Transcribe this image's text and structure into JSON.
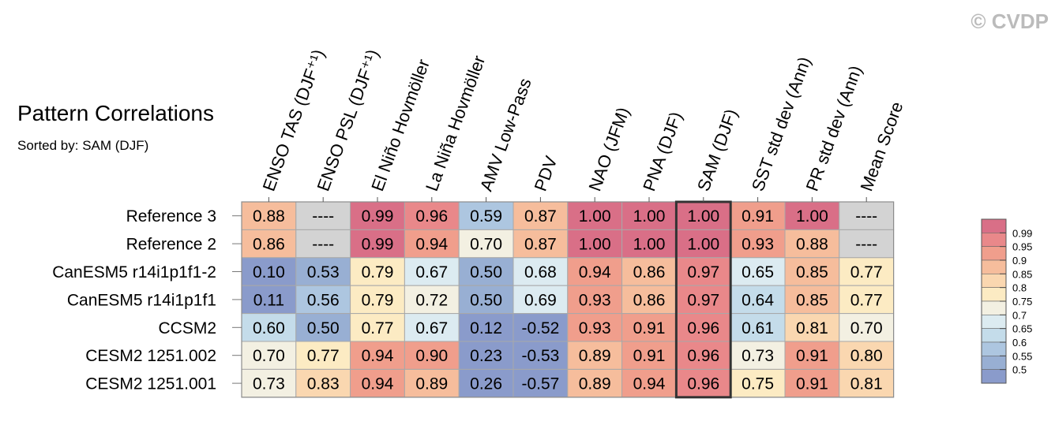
{
  "watermark": "© CVDP",
  "chart_data": {
    "type": "heatmap",
    "title": "Pattern Correlations",
    "subtitle": "Sorted by: SAM (DJF)",
    "columns": [
      "ENSO TAS (DJF⁺¹)",
      "ENSO PSL (DJF⁺¹)",
      "El Niño Hovmöller",
      "La Niña Hovmöller",
      "AMV Low-Pass",
      "PDV",
      "NAO (JFM)",
      "PNA (DJF)",
      "SAM (DJF)",
      "SST std dev (Ann)",
      "PR std dev (Ann)",
      "Mean Score"
    ],
    "highlighted_column": "SAM (DJF)",
    "rows": [
      {
        "name": "Reference 3",
        "values": [
          "0.88",
          "----",
          "0.99",
          "0.96",
          "0.59",
          "0.87",
          "1.00",
          "1.00",
          "1.00",
          "0.91",
          "1.00",
          "----"
        ]
      },
      {
        "name": "Reference 2",
        "values": [
          "0.86",
          "----",
          "0.99",
          "0.94",
          "0.70",
          "0.87",
          "1.00",
          "1.00",
          "1.00",
          "0.93",
          "0.88",
          "----"
        ]
      },
      {
        "name": "CanESM5 r14i1p1f1-2",
        "values": [
          "0.10",
          "0.53",
          "0.79",
          "0.67",
          "0.50",
          "0.68",
          "0.94",
          "0.86",
          "0.97",
          "0.65",
          "0.85",
          "0.77"
        ]
      },
      {
        "name": "CanESM5 r14i1p1f1",
        "values": [
          "0.11",
          "0.56",
          "0.79",
          "0.72",
          "0.50",
          "0.69",
          "0.93",
          "0.86",
          "0.97",
          "0.64",
          "0.85",
          "0.77"
        ]
      },
      {
        "name": "CCSM2",
        "values": [
          "0.60",
          "0.50",
          "0.77",
          "0.67",
          "0.12",
          "-0.52",
          "0.93",
          "0.91",
          "0.96",
          "0.61",
          "0.81",
          "0.70"
        ]
      },
      {
        "name": "CESM2 1251.002",
        "values": [
          "0.70",
          "0.77",
          "0.94",
          "0.90",
          "0.23",
          "-0.53",
          "0.89",
          "0.91",
          "0.96",
          "0.73",
          "0.91",
          "0.80"
        ]
      },
      {
        "name": "CESM2 1251.001",
        "values": [
          "0.73",
          "0.83",
          "0.94",
          "0.89",
          "0.26",
          "-0.57",
          "0.89",
          "0.94",
          "0.96",
          "0.75",
          "0.91",
          "0.81"
        ]
      }
    ],
    "colorbar": {
      "boundaries": [
        1.0,
        0.99,
        0.95,
        0.9,
        0.85,
        0.8,
        0.75,
        0.7,
        0.65,
        0.6,
        0.55,
        0.5,
        0.0
      ],
      "colors": [
        "#d96f87",
        "#e9888a",
        "#f09e8c",
        "#f6bd9c",
        "#fad7b0",
        "#fcebc3",
        "#f3f0e2",
        "#dcebf1",
        "#c4dcea",
        "#adc6e0",
        "#98afd3",
        "#8a9bcb"
      ],
      "labels": [
        "0.99",
        "0.95",
        "0.9",
        "0.85",
        "0.8",
        "0.75",
        "0.7",
        "0.65",
        "0.6",
        "0.55",
        "0.5"
      ]
    },
    "missing_color": "#d3d3d3"
  }
}
